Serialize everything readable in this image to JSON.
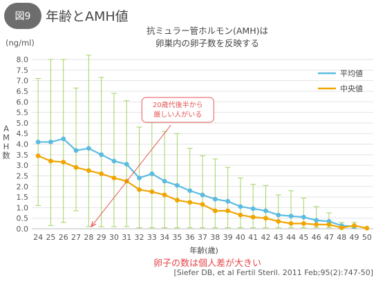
{
  "header": {
    "fig_label": "図9",
    "fig_title": "年齢とAMH値"
  },
  "chart_data": {
    "type": "line",
    "title_lines": [
      "抗ミュラー管ホルモン(AMH)は",
      "卵巣内の卵子数を反映する"
    ],
    "unit": "(ng/ml)",
    "ylabel": "AMH数",
    "xlabel": "年齢(歳)",
    "ylim": [
      0,
      8
    ],
    "yticks": [
      "0.0",
      "0.5",
      "1.0",
      "1.5",
      "2.0",
      "2.5",
      "3.0",
      "3.5",
      "4.0",
      "4.5",
      "5.0",
      "5.5",
      "6.0",
      "6.5",
      "7.0",
      "7.5",
      "8.0"
    ],
    "x": [
      24,
      25,
      26,
      27,
      28,
      29,
      30,
      31,
      32,
      33,
      34,
      35,
      36,
      37,
      38,
      39,
      40,
      41,
      42,
      43,
      44,
      45,
      46,
      47,
      48,
      49,
      50
    ],
    "grid": true,
    "legend_position": "top-right",
    "series": [
      {
        "name": "平均値",
        "color": "#5bbbe0",
        "values": [
          4.1,
          4.1,
          4.25,
          3.7,
          3.8,
          3.5,
          3.2,
          3.05,
          2.4,
          2.6,
          2.25,
          2.05,
          1.8,
          1.6,
          1.4,
          1.3,
          1.05,
          0.95,
          0.85,
          0.65,
          0.6,
          0.55,
          0.4,
          0.35,
          0.15,
          0.1,
          null
        ]
      },
      {
        "name": "中央値",
        "color": "#f0a500",
        "values": [
          3.45,
          3.2,
          3.15,
          2.9,
          2.75,
          2.6,
          2.4,
          2.25,
          1.85,
          1.75,
          1.6,
          1.35,
          1.25,
          1.15,
          0.85,
          0.85,
          0.65,
          0.55,
          0.5,
          0.35,
          0.25,
          0.25,
          0.2,
          0.2,
          0.05,
          0.15,
          0.03
        ]
      }
    ],
    "error_bars": {
      "color": "#a4d264",
      "upper": [
        7.1,
        8.0,
        8.0,
        6.65,
        8.2,
        7.15,
        6.4,
        6.05,
        4.8,
        5.4,
        4.6,
        4.5,
        3.8,
        3.45,
        3.3,
        2.9,
        2.4,
        2.1,
        2.05,
        1.6,
        1.8,
        1.45,
        1.05,
        0.75,
        0.3,
        0.3,
        null
      ],
      "lower": [
        1.1,
        0.15,
        0.3,
        0.85,
        0.1,
        0.1,
        0.1,
        0.1,
        0.05,
        0.05,
        0.05,
        0.05,
        0.05,
        0.05,
        0.05,
        0.05,
        0.05,
        0.05,
        0.05,
        0.05,
        0.05,
        0.05,
        0.05,
        0.05,
        0.02,
        0.02,
        null
      ]
    },
    "annotation": {
      "lines": [
        "20歳代後半から",
        "厳しい人がいる"
      ],
      "color": "#e55555",
      "from_x": 34.5,
      "from_y": 4.9,
      "to_x": 28.2,
      "to_y": 0.1
    }
  },
  "footer": {
    "note": "卵子の数は個人差が大きい",
    "citation": "[Siefer DB, et al Fertil Steril. 2011 Feb;95(2):747-50]"
  }
}
